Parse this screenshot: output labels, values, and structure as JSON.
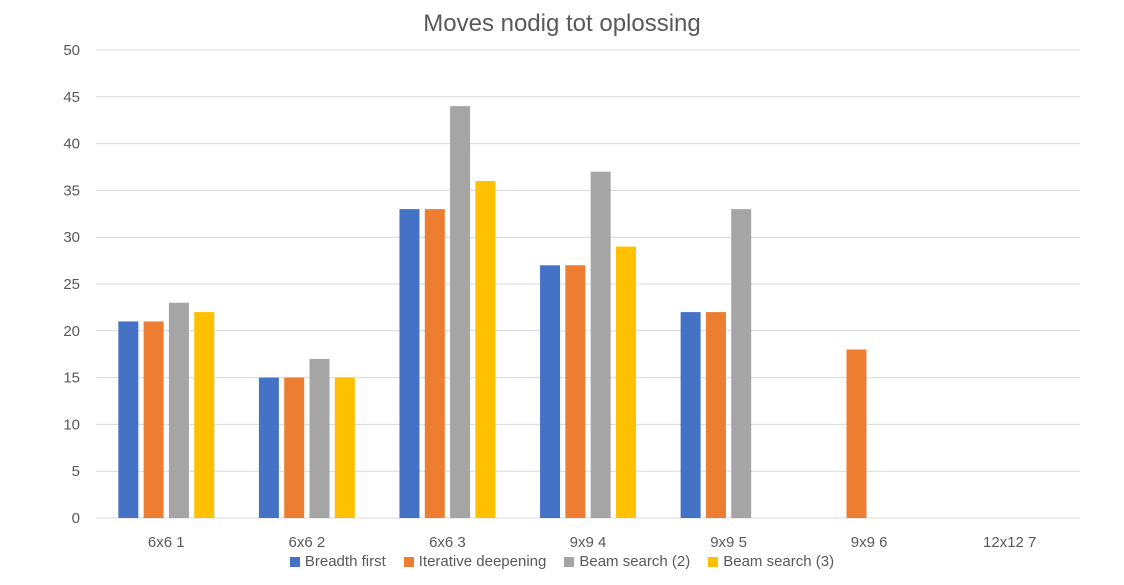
{
  "chart_data": {
    "type": "bar",
    "title": "Moves nodig tot oplossing",
    "xlabel": "",
    "ylabel": "",
    "categories": [
      "6x6 1",
      "6x6 2",
      "6x6 3",
      "9x9 4",
      "9x9 5",
      "9x9 6",
      "12x12 7"
    ],
    "ylim": [
      0,
      50
    ],
    "yticks": [
      0,
      5,
      10,
      15,
      20,
      25,
      30,
      35,
      40,
      45,
      50
    ],
    "grid": true,
    "legend_position": "bottom",
    "series": [
      {
        "name": "Breadth first",
        "color": "#4472C4",
        "values": [
          21,
          15,
          33,
          27,
          22,
          null,
          null
        ]
      },
      {
        "name": "Iterative deepening",
        "color": "#ED7D31",
        "values": [
          21,
          15,
          33,
          27,
          22,
          18,
          null
        ]
      },
      {
        "name": "Beam search (2)",
        "color": "#A5A5A5",
        "values": [
          23,
          17,
          44,
          37,
          33,
          null,
          null
        ]
      },
      {
        "name": "Beam search (3)",
        "color": "#FFC000",
        "values": [
          22,
          15,
          36,
          29,
          null,
          null,
          null
        ]
      }
    ]
  }
}
